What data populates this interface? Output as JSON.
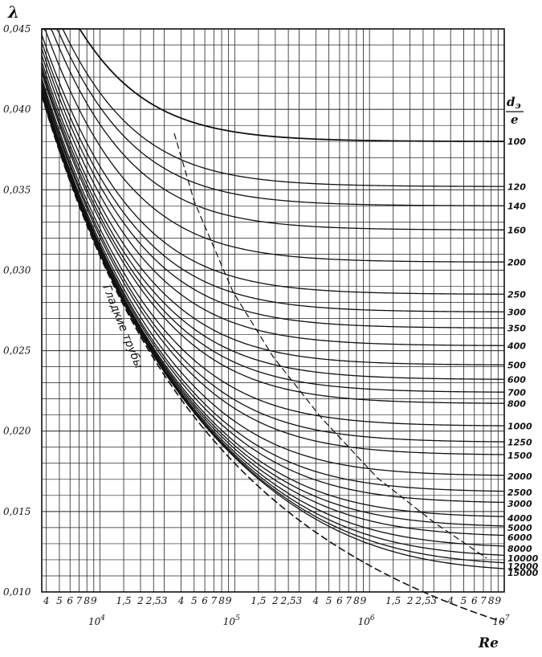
{
  "chart_data": {
    "type": "line",
    "x_scale": "log",
    "grid": true,
    "xlim": [
      3700,
      10000000
    ],
    "ylim": [
      0.01,
      0.045
    ],
    "y_axis_label": "λ",
    "x_axis_label": "Re",
    "param_label_top": "d",
    "param_label_top_sub": "э",
    "param_label_bottom": "e",
    "y_ticks": [
      {
        "value": 0.045,
        "label": "0,045"
      },
      {
        "value": 0.04,
        "label": "0,040"
      },
      {
        "value": 0.035,
        "label": "0,035"
      },
      {
        "value": 0.03,
        "label": "0,030"
      },
      {
        "value": 0.025,
        "label": "0,025"
      },
      {
        "value": 0.02,
        "label": "0,020"
      },
      {
        "value": 0.015,
        "label": "0,015"
      },
      {
        "value": 0.01,
        "label": "0,010"
      }
    ],
    "x_minor_ticks": [
      {
        "value": 4000,
        "label": "4"
      },
      {
        "value": 5000,
        "label": "5"
      },
      {
        "value": 6000,
        "label": "6"
      },
      {
        "value": 7000,
        "label": "7"
      },
      {
        "value": 8000,
        "label": "8"
      },
      {
        "value": 9000,
        "label": "9"
      },
      {
        "value": 15000,
        "label": "1,5"
      },
      {
        "value": 20000,
        "label": "2"
      },
      {
        "value": 25000,
        "label": "2,5"
      },
      {
        "value": 30000,
        "label": "3"
      },
      {
        "value": 40000,
        "label": "4"
      },
      {
        "value": 50000,
        "label": "5"
      },
      {
        "value": 60000,
        "label": "6"
      },
      {
        "value": 70000,
        "label": "7"
      },
      {
        "value": 80000,
        "label": "8"
      },
      {
        "value": 90000,
        "label": "9"
      },
      {
        "value": 150000,
        "label": "1,5"
      },
      {
        "value": 200000,
        "label": "2"
      },
      {
        "value": 250000,
        "label": "2,5"
      },
      {
        "value": 300000,
        "label": "3"
      },
      {
        "value": 400000,
        "label": "4"
      },
      {
        "value": 500000,
        "label": "5"
      },
      {
        "value": 600000,
        "label": "6"
      },
      {
        "value": 700000,
        "label": "7"
      },
      {
        "value": 800000,
        "label": "8"
      },
      {
        "value": 900000,
        "label": "9"
      },
      {
        "value": 1500000,
        "label": "1,5"
      },
      {
        "value": 2000000,
        "label": "2"
      },
      {
        "value": 2500000,
        "label": "2,5"
      },
      {
        "value": 3000000,
        "label": "3"
      },
      {
        "value": 4000000,
        "label": "4"
      },
      {
        "value": 5000000,
        "label": "5"
      },
      {
        "value": 6000000,
        "label": "6"
      },
      {
        "value": 7000000,
        "label": "7"
      },
      {
        "value": 8000000,
        "label": "8"
      },
      {
        "value": 9000000,
        "label": "9"
      }
    ],
    "x_decade_ticks": [
      {
        "value": 10000,
        "base": "10",
        "exp": "4"
      },
      {
        "value": 100000,
        "base": "10",
        "exp": "5"
      },
      {
        "value": 1000000,
        "base": "10",
        "exp": "6"
      },
      {
        "value": 10000000,
        "base": "10",
        "exp": "7"
      }
    ],
    "smooth_pipes_label": "Гладкие трубы",
    "series": [
      {
        "name": "100",
        "lambda_limit": 0.038
      },
      {
        "name": "120",
        "lambda_limit": 0.0352
      },
      {
        "name": "140",
        "lambda_limit": 0.034
      },
      {
        "name": "160",
        "lambda_limit": 0.0325
      },
      {
        "name": "200",
        "lambda_limit": 0.0305
      },
      {
        "name": "250",
        "lambda_limit": 0.0285
      },
      {
        "name": "300",
        "lambda_limit": 0.0274
      },
      {
        "name": "350",
        "lambda_limit": 0.0264
      },
      {
        "name": "400",
        "lambda_limit": 0.0253
      },
      {
        "name": "500",
        "lambda_limit": 0.0241
      },
      {
        "name": "600",
        "lambda_limit": 0.0232
      },
      {
        "name": "700",
        "lambda_limit": 0.0224
      },
      {
        "name": "800",
        "lambda_limit": 0.0217
      },
      {
        "name": "1000",
        "lambda_limit": 0.0203
      },
      {
        "name": "1250",
        "lambda_limit": 0.0193
      },
      {
        "name": "1500",
        "lambda_limit": 0.0185
      },
      {
        "name": "2000",
        "lambda_limit": 0.0172
      },
      {
        "name": "2500",
        "lambda_limit": 0.0162
      },
      {
        "name": "3000",
        "lambda_limit": 0.0155
      },
      {
        "name": "4000",
        "lambda_limit": 0.0146
      },
      {
        "name": "5000",
        "lambda_limit": 0.014
      },
      {
        "name": "6000",
        "lambda_limit": 0.0134
      },
      {
        "name": "8000",
        "lambda_limit": 0.0127
      },
      {
        "name": "10000",
        "lambda_limit": 0.0121
      },
      {
        "name": "12000",
        "lambda_limit": 0.0116
      },
      {
        "name": "15000",
        "lambda_limit": 0.0112
      }
    ]
  }
}
